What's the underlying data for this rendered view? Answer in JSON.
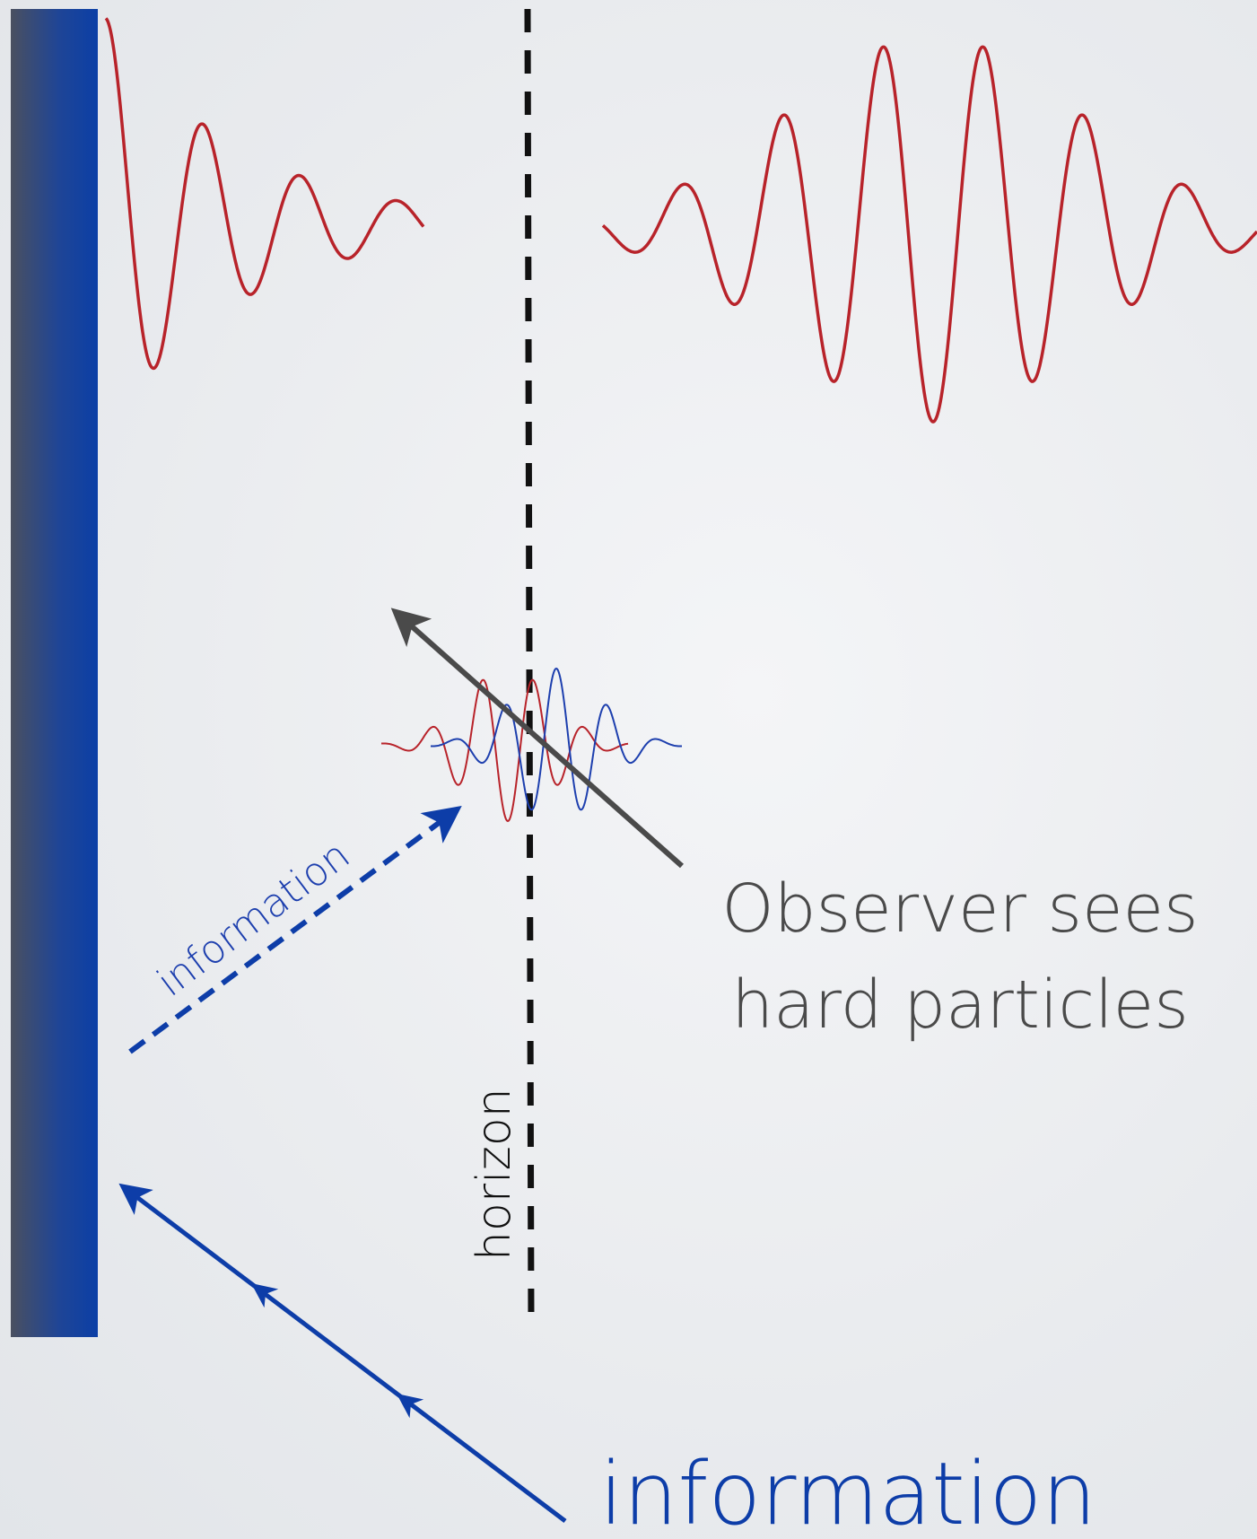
{
  "labels": {
    "observer_line1": "Observer sees",
    "observer_line2": "hard particles",
    "horizon": "horizon",
    "information_small": "information",
    "information_big": "information"
  },
  "colors": {
    "wave_red": "#b8232a",
    "wave_blue": "#1d3fae",
    "arrow_blue": "#0d3da8",
    "arrow_gray": "#4a4a4a",
    "horizon_line": "#111111",
    "wall_left": "#4a5060",
    "wall_right": "#0b3fa6",
    "text_gray": "#4a4a4a"
  }
}
